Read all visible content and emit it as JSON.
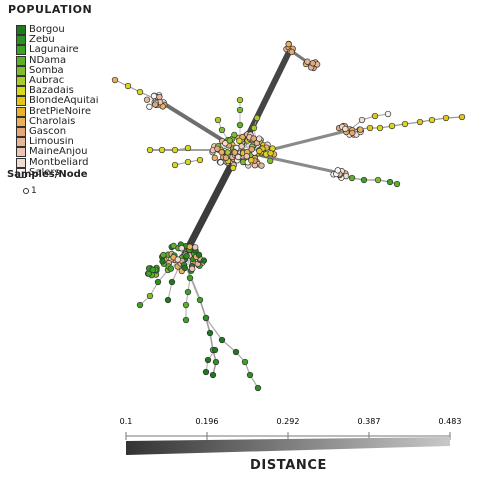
{
  "legend": {
    "title": "POPULATION",
    "items": [
      {
        "label": "Borgou",
        "color": "#1f7a1f"
      },
      {
        "label": "Zebu",
        "color": "#2e8f22"
      },
      {
        "label": "Lagunaire",
        "color": "#3da324"
      },
      {
        "label": "NDama",
        "color": "#5cb02a"
      },
      {
        "label": "Somba",
        "color": "#7dbd2e"
      },
      {
        "label": "Aubrac",
        "color": "#a8cc2a"
      },
      {
        "label": "Bazadais",
        "color": "#d8d820"
      },
      {
        "label": "BlondeAquitaine",
        "color": "#e2c71a"
      },
      {
        "label": "BretPieNoire",
        "color": "#e8b42a"
      },
      {
        "label": "Charolais",
        "color": "#eab15a"
      },
      {
        "label": "Gascon",
        "color": "#e2a878"
      },
      {
        "label": "Limousin",
        "color": "#e6b59a"
      },
      {
        "label": "MaineAnjou",
        "color": "#eec4b3"
      },
      {
        "label": "Montbeliard",
        "color": "#f2dcd2"
      },
      {
        "label": "Salers",
        "color": "#f7f4f2"
      }
    ]
  },
  "node_size_legend": {
    "title": "Samples/Node",
    "items": [
      {
        "label": "1"
      }
    ]
  },
  "distance_scale": {
    "title": "DISTANCE",
    "ticks": [
      "0.1",
      "0.196",
      "0.292",
      "0.387",
      "0.483"
    ]
  },
  "colors": {
    "node_outline": "#333333",
    "edge_dark": "#3a3a3a",
    "edge_light": "#b0b0b0"
  }
}
